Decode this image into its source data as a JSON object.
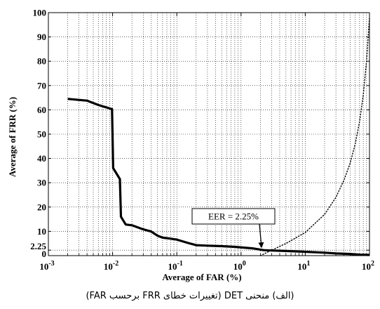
{
  "caption": "(الف) منحنی DET (تغییرات خطای FRR برحسب FAR)",
  "chart_data": {
    "type": "line",
    "xlabel": "Average of FAR (%)",
    "ylabel": "Average of FRR (%)",
    "xscale": "log",
    "xlim": [
      0.001,
      100
    ],
    "ylim": [
      0,
      100
    ],
    "x_ticks": [
      {
        "value": 0.001,
        "base": "10",
        "exp": "-3"
      },
      {
        "value": 0.01,
        "base": "10",
        "exp": "-2"
      },
      {
        "value": 0.1,
        "base": "10",
        "exp": "-1"
      },
      {
        "value": 1,
        "base": "10",
        "exp": "0"
      },
      {
        "value": 10,
        "base": "10",
        "exp": "1"
      },
      {
        "value": 100,
        "base": "10",
        "exp": "2"
      }
    ],
    "y_ticks": [
      {
        "value": 0,
        "label": "0"
      },
      {
        "value": 2.25,
        "label": "2.25"
      },
      {
        "value": 10,
        "label": "10"
      },
      {
        "value": 20,
        "label": "20"
      },
      {
        "value": 30,
        "label": "30"
      },
      {
        "value": 40,
        "label": "40"
      },
      {
        "value": 50,
        "label": "50"
      },
      {
        "value": 60,
        "label": "60"
      },
      {
        "value": 70,
        "label": "70"
      },
      {
        "value": 80,
        "label": "80"
      },
      {
        "value": 90,
        "label": "90"
      },
      {
        "value": 100,
        "label": "100"
      }
    ],
    "grid": true,
    "series": [
      {
        "style": "solid",
        "color": "#000000",
        "x": [
          0.002,
          0.004,
          0.006,
          0.0098,
          0.0102,
          0.013,
          0.0135,
          0.016,
          0.02,
          0.03,
          0.04,
          0.05,
          0.06,
          0.08,
          0.1,
          0.15,
          0.2,
          0.3,
          0.5,
          0.8,
          1.5,
          2.25,
          3,
          5,
          10,
          20,
          30,
          50,
          70,
          100
        ],
        "y": [
          64.5,
          63.8,
          62,
          60.3,
          36,
          31.5,
          16,
          12.8,
          12.5,
          10.8,
          9.9,
          8.2,
          7.4,
          7,
          6.6,
          5.2,
          4.3,
          4.1,
          3.9,
          3.6,
          3.0,
          2.25,
          2.1,
          1.9,
          1.6,
          1.2,
          0.9,
          0.7,
          0.4,
          0.3
        ]
      },
      {
        "style": "dotted",
        "color": "#000000",
        "x": [
          2.0,
          3.0,
          5.0,
          10,
          20,
          30,
          40,
          50,
          60,
          70,
          80,
          90,
          100
        ],
        "y": [
          0,
          2.25,
          5,
          9.5,
          17,
          24,
          31,
          38,
          46,
          55,
          66,
          80,
          98
        ]
      }
    ],
    "annotations": [
      {
        "text": "EER = 2.25%",
        "x": 2.25,
        "y": 2.25
      }
    ]
  }
}
